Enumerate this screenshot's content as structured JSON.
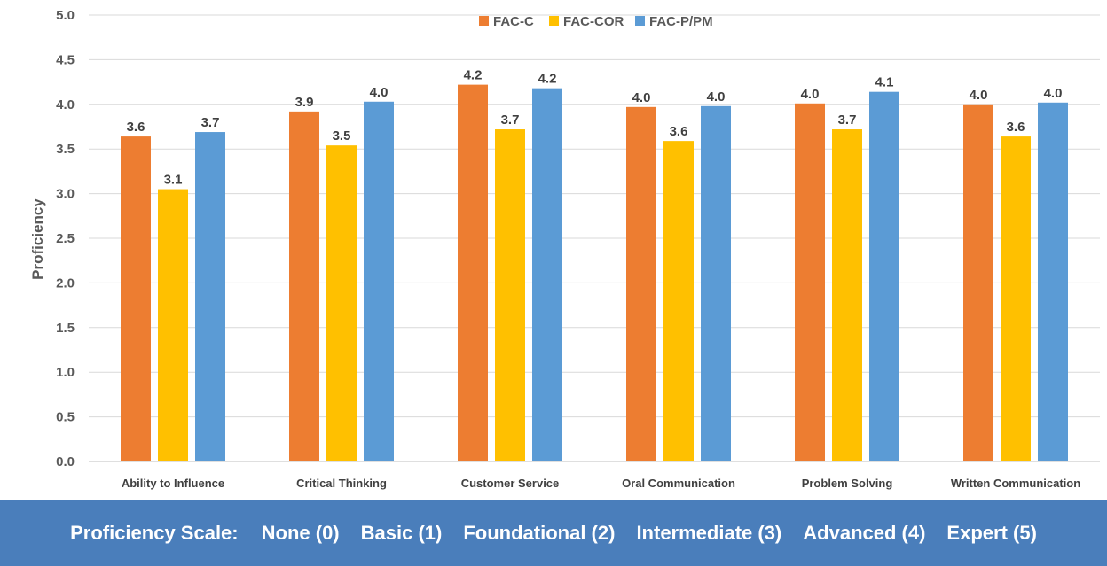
{
  "chart_data": {
    "type": "bar",
    "title": "",
    "xlabel": "",
    "ylabel": "Proficiency",
    "ylim": [
      0,
      5
    ],
    "yticks": [
      "0.0",
      "0.5",
      "1.0",
      "1.5",
      "2.0",
      "2.5",
      "3.0",
      "3.5",
      "4.0",
      "4.5",
      "5.0"
    ],
    "grid": true,
    "legend_position": "top-center",
    "categories": [
      "Ability to Influence",
      "Critical Thinking",
      "Customer Service",
      "Oral Communication",
      "Problem Solving",
      "Written Communication"
    ],
    "series": [
      {
        "name": "FAC-C",
        "color": "#ed7d31",
        "values": [
          3.64,
          3.92,
          4.22,
          3.97,
          4.01,
          4.0
        ],
        "labels": [
          "3.6",
          "3.9",
          "4.2",
          "4.0",
          "4.0",
          "4.0"
        ]
      },
      {
        "name": "FAC-COR",
        "color": "#ffc000",
        "values": [
          3.05,
          3.54,
          3.72,
          3.59,
          3.72,
          3.64
        ],
        "labels": [
          "3.1",
          "3.5",
          "3.7",
          "3.6",
          "3.7",
          "3.6"
        ]
      },
      {
        "name": "FAC-P/PM",
        "color": "#5b9bd5",
        "values": [
          3.69,
          4.03,
          4.18,
          3.98,
          4.14,
          4.02
        ],
        "labels": [
          "3.7",
          "4.0",
          "4.2",
          "4.0",
          "4.1",
          "4.0"
        ]
      }
    ]
  },
  "proficiency_scale": {
    "label": "Proficiency Scale:",
    "levels": [
      "None (0)",
      "Basic (1)",
      "Foundational (2)",
      "Intermediate (3)",
      "Advanced (4)",
      "Expert (5)"
    ]
  }
}
